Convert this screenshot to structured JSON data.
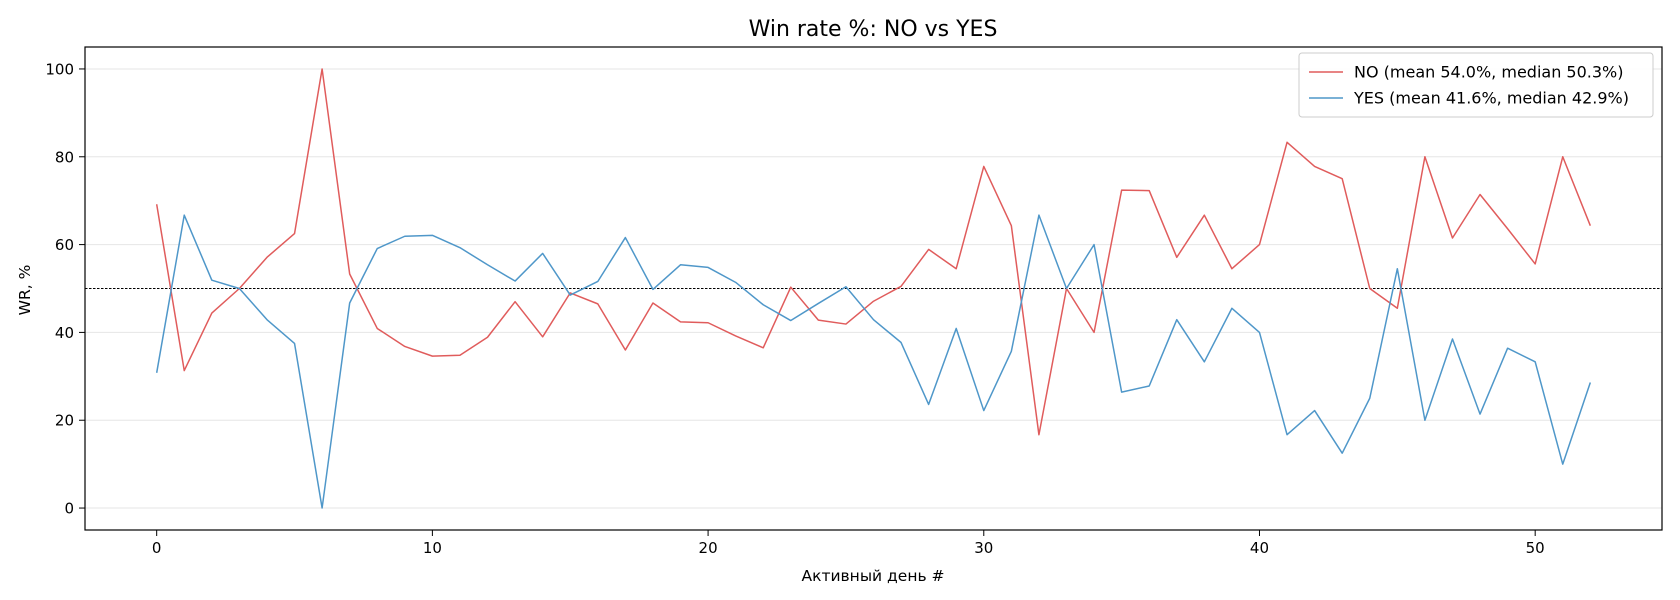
{
  "chart_data": {
    "type": "line",
    "title": "Win rate %: NO vs YES",
    "xlabel": "Активный день #",
    "ylabel": "WR, %",
    "xlim": [
      -2.6,
      54.6
    ],
    "ylim": [
      -5,
      105
    ],
    "xticks": [
      0,
      10,
      20,
      30,
      40,
      50
    ],
    "yticks": [
      0,
      20,
      40,
      60,
      80,
      100
    ],
    "grid": "horizontal",
    "reference_line": 50,
    "legend_position": "top-right",
    "x": [
      0,
      1,
      2,
      3,
      4,
      5,
      6,
      7,
      8,
      9,
      10,
      11,
      12,
      13,
      14,
      15,
      16,
      17,
      18,
      19,
      20,
      21,
      22,
      23,
      24,
      25,
      26,
      27,
      28,
      29,
      30,
      31,
      32,
      33,
      34,
      35,
      36,
      37,
      38,
      39,
      40,
      41,
      42,
      43,
      44,
      45,
      46,
      47,
      48,
      49,
      50,
      51,
      52
    ],
    "series": [
      {
        "name": "NO (mean 54.0%, median 50.3%)",
        "color": "#e05c5c",
        "values": [
          69.2,
          31.3,
          44.4,
          50,
          57.1,
          62.5,
          100,
          53.3,
          40.9,
          36.8,
          34.6,
          34.8,
          38.9,
          47,
          39,
          49,
          46.5,
          36,
          46.7,
          42.4,
          42.2,
          39.2,
          36.5,
          50.3,
          42.8,
          41.9,
          47.1,
          50.5,
          58.9,
          54.5,
          77.8,
          64.3,
          16.7,
          50,
          40,
          72.4,
          72.3,
          57.1,
          66.7,
          54.5,
          60,
          83.3,
          77.8,
          75,
          50,
          45.5,
          80,
          61.5,
          71.4,
          63.6,
          55.6,
          80,
          64.3
        ]
      },
      {
        "name": "YES (mean 41.6%, median 42.9%)",
        "color": "#4f97c9",
        "values": [
          30.8,
          66.7,
          51.9,
          50,
          42.9,
          37.5,
          0,
          46.7,
          59.1,
          61.9,
          62.1,
          59.3,
          55.4,
          51.7,
          58,
          48.5,
          51.6,
          61.6,
          49.8,
          55.4,
          54.8,
          51.4,
          46.3,
          42.7,
          46.6,
          50.4,
          42.9,
          37.7,
          23.6,
          40.9,
          22.2,
          35.7,
          66.7,
          50,
          60,
          26.4,
          27.8,
          42.9,
          33.3,
          45.5,
          40,
          16.7,
          22.2,
          12.5,
          25,
          54.5,
          20,
          38.5,
          21.4,
          36.4,
          33.3,
          10,
          28.6
        ]
      }
    ]
  }
}
